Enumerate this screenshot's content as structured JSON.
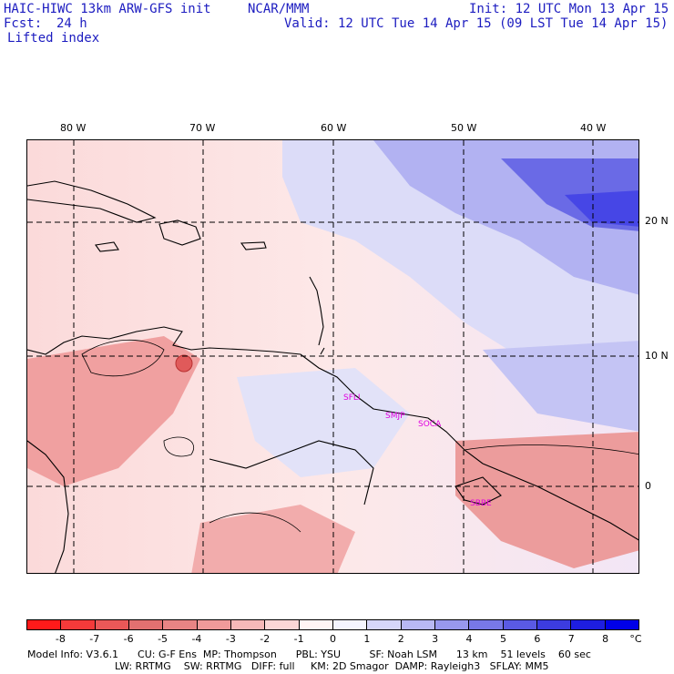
{
  "header": {
    "title": "HAIC-HIWC 13km ARW-GFS init",
    "org": "NCAR/MMM",
    "fcst_label": "Fcst:",
    "fcst_value": "24 h",
    "field": "Lifted index",
    "init": "Init: 12 UTC Mon 13 Apr 15",
    "valid": "Valid: 12 UTC Tue 14 Apr 15 (09 LST Tue 14 Apr 15)"
  },
  "map": {
    "lon_labels": [
      "80 W",
      "70 W",
      "60 W",
      "50 W",
      "40 W"
    ],
    "lat_labels": [
      "20 N",
      "10 N",
      "0"
    ],
    "stations": [
      "SFLI",
      "SMJP",
      "SOCA",
      "SBBE"
    ],
    "colors": {
      "neg_light": "#fad2d2",
      "neg_mid": "#f0a0a0",
      "neg_dark": "#e05a5a",
      "pos_light": "#dcdcf8",
      "pos_mid": "#a8a8f0",
      "pos_dark": "#4646e6",
      "land": "#000000"
    }
  },
  "colorbar": {
    "labels": [
      "-8",
      "-7",
      "-6",
      "-5",
      "-4",
      "-3",
      "-2",
      "-1",
      "0",
      "1",
      "2",
      "3",
      "4",
      "5",
      "6",
      "7",
      "8",
      "°C"
    ],
    "colors": [
      "#ff1a1a",
      "#f43a3a",
      "#ea5858",
      "#e27070",
      "#e88484",
      "#f09a9a",
      "#f6b8b8",
      "#fbd6d6",
      "#fff4f4",
      "#f4f4ff",
      "#d6d6fa",
      "#b8b8f4",
      "#9898ee",
      "#7878e8",
      "#5a5ae4",
      "#3c3ce0",
      "#1e1ee0",
      "#0000e8"
    ]
  },
  "model_info": {
    "line1": "Model Info: V3.6.1      CU: G-F Ens  MP: Thompson      PBL: YSU         SF: Noah LSM      13 km    51 levels    60 sec",
    "line2": "LW: RRTMG    SW: RRTMG   DIFF: full     KM: 2D Smagor  DAMP: Rayleigh3   SFLAY: MM5"
  }
}
